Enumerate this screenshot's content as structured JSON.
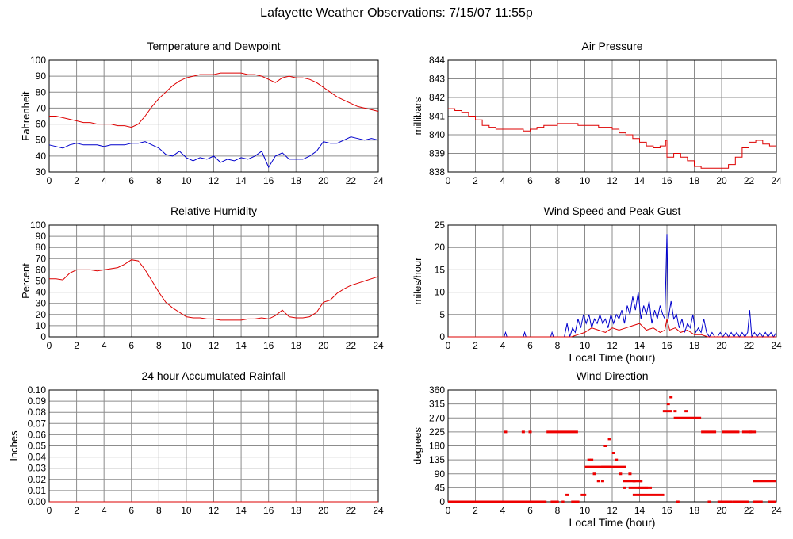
{
  "title": "Lafayette Weather Observations: 7/15/07 11:55p",
  "chart_data": [
    {
      "id": "temp",
      "type": "line",
      "title": "Temperature and Dewpoint",
      "xlabel": "",
      "ylabel": "Fahrenheit",
      "xlim": [
        0,
        24
      ],
      "ylim": [
        30,
        100
      ],
      "xticks": [
        0,
        2,
        4,
        6,
        8,
        10,
        12,
        14,
        16,
        18,
        20,
        22,
        24
      ],
      "yticks": [
        30,
        40,
        50,
        60,
        70,
        80,
        90,
        100
      ],
      "grid": true,
      "series": [
        {
          "color": "#dd0000",
          "x": [
            0,
            0.5,
            1,
            1.5,
            2,
            2.5,
            3,
            3.5,
            4,
            4.5,
            5,
            5.5,
            6,
            6.5,
            7,
            7.5,
            8,
            8.5,
            9,
            9.5,
            10,
            10.5,
            11,
            11.5,
            12,
            12.5,
            13,
            13.5,
            14,
            14.5,
            15,
            15.5,
            16,
            16.5,
            17,
            17.5,
            18,
            18.5,
            19,
            19.5,
            20,
            20.5,
            21,
            21.5,
            22,
            22.5,
            23,
            23.5,
            24
          ],
          "y": [
            65,
            65,
            64,
            63,
            62,
            61,
            61,
            60,
            60,
            60,
            59,
            59,
            58,
            60,
            65,
            71,
            76,
            80,
            84,
            87,
            89,
            90,
            91,
            91,
            91,
            92,
            92,
            92,
            92,
            91,
            91,
            90,
            88,
            86,
            89,
            90,
            89,
            89,
            88,
            86,
            83,
            80,
            77,
            75,
            73,
            71,
            70,
            69,
            68
          ]
        },
        {
          "color": "#0000cc",
          "x": [
            0,
            0.5,
            1,
            1.5,
            2,
            2.5,
            3,
            3.5,
            4,
            4.5,
            5,
            5.5,
            6,
            6.5,
            7,
            7.5,
            8,
            8.5,
            9,
            9.5,
            10,
            10.5,
            11,
            11.5,
            12,
            12.5,
            13,
            13.5,
            14,
            14.5,
            15,
            15.5,
            16,
            16.5,
            17,
            17.5,
            18,
            18.5,
            19,
            19.5,
            20,
            20.5,
            21,
            21.5,
            22,
            22.5,
            23,
            23.5,
            24
          ],
          "y": [
            47,
            46,
            45,
            47,
            48,
            47,
            47,
            47,
            46,
            47,
            47,
            47,
            48,
            48,
            49,
            47,
            45,
            41,
            40,
            43,
            39,
            37,
            39,
            38,
            40,
            36,
            38,
            37,
            39,
            38,
            40,
            43,
            33,
            40,
            42,
            38,
            38,
            38,
            40,
            43,
            49,
            48,
            48,
            50,
            52,
            51,
            50,
            51,
            50
          ]
        }
      ]
    },
    {
      "id": "pressure",
      "type": "line",
      "title": "Air Pressure",
      "xlabel": "",
      "ylabel": "millibars",
      "xlim": [
        0,
        24
      ],
      "ylim": [
        838,
        844
      ],
      "xticks": [
        0,
        2,
        4,
        6,
        8,
        10,
        12,
        14,
        16,
        18,
        20,
        22,
        24
      ],
      "yticks": [
        838,
        839,
        840,
        841,
        842,
        843,
        844
      ],
      "grid": true,
      "series": [
        {
          "color": "#dd0000",
          "x": [
            0,
            0.5,
            1,
            1.5,
            2,
            2.5,
            3,
            3.5,
            4,
            4.5,
            5,
            5.5,
            6,
            6.5,
            7,
            7.5,
            8,
            8.5,
            9,
            9.5,
            10,
            10.5,
            11,
            11.5,
            12,
            12.5,
            13,
            13.5,
            14,
            14.5,
            15,
            15.5,
            15.9,
            16,
            16.5,
            17,
            17.5,
            18,
            18.5,
            19,
            19.5,
            20,
            20.5,
            21,
            21.5,
            22,
            22.5,
            23,
            23.5,
            24
          ],
          "y": [
            841.4,
            841.3,
            841.2,
            841.0,
            840.8,
            840.5,
            840.4,
            840.3,
            840.3,
            840.3,
            840.3,
            840.2,
            840.3,
            840.4,
            840.5,
            840.5,
            840.6,
            840.6,
            840.6,
            840.5,
            840.5,
            840.5,
            840.4,
            840.4,
            840.3,
            840.1,
            840.0,
            839.8,
            839.6,
            839.4,
            839.3,
            839.4,
            839.7,
            838.8,
            839.0,
            838.8,
            838.6,
            838.3,
            838.2,
            838.2,
            838.2,
            838.2,
            838.4,
            838.8,
            839.3,
            839.6,
            839.7,
            839.5,
            839.4,
            839.4
          ]
        }
      ]
    },
    {
      "id": "humidity",
      "type": "line",
      "title": "Relative Humidity",
      "xlabel": "",
      "ylabel": "Percent",
      "xlim": [
        0,
        24
      ],
      "ylim": [
        0,
        100
      ],
      "xticks": [
        0,
        2,
        4,
        6,
        8,
        10,
        12,
        14,
        16,
        18,
        20,
        22,
        24
      ],
      "yticks": [
        0,
        10,
        20,
        30,
        40,
        50,
        60,
        70,
        80,
        90,
        100
      ],
      "grid": true,
      "series": [
        {
          "color": "#dd0000",
          "x": [
            0,
            0.5,
            1,
            1.5,
            2,
            2.5,
            3,
            3.5,
            4,
            4.5,
            5,
            5.5,
            6,
            6.5,
            7,
            7.5,
            8,
            8.5,
            9,
            9.5,
            10,
            10.5,
            11,
            11.5,
            12,
            12.5,
            13,
            13.5,
            14,
            14.5,
            15,
            15.5,
            16,
            16.5,
            17,
            17.5,
            18,
            18.5,
            19,
            19.5,
            20,
            20.5,
            21,
            21.5,
            22,
            22.5,
            23,
            23.5,
            24
          ],
          "y": [
            52,
            52,
            51,
            57,
            60,
            60,
            60,
            59,
            60,
            61,
            62,
            65,
            69,
            68,
            60,
            50,
            40,
            31,
            26,
            22,
            18,
            17,
            17,
            16,
            16,
            15,
            15,
            15,
            15,
            16,
            16,
            17,
            16,
            19,
            24,
            18,
            17,
            17,
            18,
            22,
            31,
            33,
            39,
            43,
            46,
            48,
            50,
            52,
            54
          ]
        }
      ]
    },
    {
      "id": "wind",
      "type": "line",
      "title": "Wind Speed and Peak Gust",
      "xlabel": "Local Time (hour)",
      "ylabel": "miles/hour",
      "xlim": [
        0,
        24
      ],
      "ylim": [
        0,
        25
      ],
      "xticks": [
        0,
        2,
        4,
        6,
        8,
        10,
        12,
        14,
        16,
        18,
        20,
        22,
        24
      ],
      "yticks": [
        0,
        5,
        10,
        15,
        20,
        25
      ],
      "grid": true,
      "series": [
        {
          "color": "#0000cc",
          "x": [
            0,
            4.1,
            4.2,
            4.3,
            5.5,
            5.6,
            5.7,
            7.5,
            7.6,
            7.7,
            8.5,
            8.7,
            8.9,
            9.1,
            9.3,
            9.5,
            9.7,
            9.9,
            10.1,
            10.3,
            10.5,
            10.7,
            10.9,
            11.1,
            11.3,
            11.5,
            11.7,
            11.9,
            12.1,
            12.3,
            12.5,
            12.7,
            12.9,
            13.1,
            13.3,
            13.5,
            13.7,
            13.9,
            14.1,
            14.3,
            14.5,
            14.7,
            14.9,
            15.1,
            15.3,
            15.5,
            15.7,
            15.85,
            16.0,
            16.1,
            16.3,
            16.5,
            16.7,
            16.9,
            17.1,
            17.3,
            17.5,
            17.7,
            17.9,
            18.1,
            18.3,
            18.5,
            18.7,
            18.9,
            19.1,
            19.3,
            19.5,
            19.7,
            19.9,
            20.1,
            20.3,
            20.5,
            20.7,
            20.9,
            21.1,
            21.3,
            21.5,
            21.7,
            21.9,
            22.05,
            22.2,
            22.4,
            22.6,
            22.8,
            23.0,
            23.2,
            23.4,
            23.6,
            23.8,
            24.0
          ],
          "y": [
            0,
            0,
            1,
            0,
            0,
            1,
            0,
            0,
            1,
            0,
            0,
            3,
            0,
            2,
            1,
            4,
            2,
            5,
            3,
            5,
            2,
            4,
            3,
            5,
            3,
            4,
            2,
            5,
            3,
            5,
            4,
            6,
            3,
            7,
            5,
            9,
            6,
            10,
            4,
            7,
            5,
            8,
            3,
            6,
            4,
            7,
            5,
            4,
            23,
            4,
            8,
            4,
            5,
            2,
            4,
            1,
            3,
            2,
            5,
            1,
            2,
            1,
            4,
            1,
            0,
            1,
            0,
            0,
            1,
            0,
            1,
            0,
            1,
            0,
            1,
            0,
            1,
            0,
            1,
            6,
            0,
            1,
            0,
            1,
            0,
            1,
            0,
            1,
            0,
            1
          ]
        },
        {
          "color": "#dd0000",
          "x": [
            0,
            9.0,
            9.5,
            10.0,
            10.5,
            11.0,
            11.5,
            12.0,
            12.5,
            13.0,
            13.5,
            14.0,
            14.5,
            15.0,
            15.5,
            15.85,
            16.0,
            16.2,
            16.6,
            17.0,
            17.5,
            18.0,
            18.5,
            19.0,
            24.0
          ],
          "y": [
            0,
            0,
            0.5,
            1,
            2,
            1.5,
            1,
            2,
            1.5,
            2,
            2.5,
            3,
            1.5,
            2,
            1,
            1.5,
            4,
            1.5,
            2,
            1,
            1.5,
            0.5,
            0.5,
            0,
            0
          ]
        }
      ]
    },
    {
      "id": "rain",
      "type": "line",
      "title": "24 hour Accumulated Rainfall",
      "xlabel": "",
      "ylabel": "Inches",
      "xlim": [
        0,
        24
      ],
      "ylim": [
        0,
        0.1
      ],
      "xticks": [
        0,
        2,
        4,
        6,
        8,
        10,
        12,
        14,
        16,
        18,
        20,
        22,
        24
      ],
      "yticks": [
        "0.00",
        "0.01",
        "0.02",
        "0.03",
        "0.04",
        "0.05",
        "0.06",
        "0.07",
        "0.08",
        "0.09",
        "0.10"
      ],
      "grid": true,
      "series": [
        {
          "color": "#dd0000",
          "x": [
            0,
            24
          ],
          "y": [
            0,
            0
          ]
        }
      ]
    },
    {
      "id": "direction",
      "type": "scatter",
      "title": "Wind Direction",
      "xlabel": "Local Time (hour)",
      "ylabel": "degrees",
      "xlim": [
        0,
        24
      ],
      "ylim": [
        0,
        360
      ],
      "xticks": [
        0,
        2,
        4,
        6,
        8,
        10,
        12,
        14,
        16,
        18,
        20,
        22,
        24
      ],
      "yticks": [
        0,
        45,
        90,
        135,
        180,
        225,
        270,
        315,
        360
      ],
      "grid": true,
      "segments": [
        {
          "x0": 0.0,
          "x1": 7.2,
          "y": 0
        },
        {
          "x0": 7.5,
          "x1": 8.1,
          "y": 0
        },
        {
          "x0": 8.3,
          "x1": 8.5,
          "y": 0
        },
        {
          "x0": 9.0,
          "x1": 9.6,
          "y": 0
        },
        {
          "x0": 9.7,
          "x1": 10.1,
          "y": 22
        },
        {
          "x0": 10.0,
          "x1": 11.9,
          "y": 112
        },
        {
          "x0": 11.2,
          "x1": 13.0,
          "y": 112
        },
        {
          "x0": 12.8,
          "x1": 14.2,
          "y": 67
        },
        {
          "x0": 13.9,
          "x1": 14.9,
          "y": 45
        },
        {
          "x0": 13.5,
          "x1": 15.8,
          "y": 22
        },
        {
          "x0": 15.7,
          "x1": 16.4,
          "y": 292
        },
        {
          "x0": 16.5,
          "x1": 18.5,
          "y": 270
        },
        {
          "x0": 18.5,
          "x1": 19.6,
          "y": 225
        },
        {
          "x0": 19.7,
          "x1": 20.8,
          "y": 0
        },
        {
          "x0": 20.0,
          "x1": 21.3,
          "y": 225
        },
        {
          "x0": 21.5,
          "x1": 22.5,
          "y": 225
        },
        {
          "x0": 20.8,
          "x1": 22.0,
          "y": 0
        },
        {
          "x0": 22.3,
          "x1": 23.0,
          "y": 0
        },
        {
          "x0": 23.4,
          "x1": 24.0,
          "y": 0
        },
        {
          "x0": 22.3,
          "x1": 24.0,
          "y": 67
        },
        {
          "x0": 7.2,
          "x1": 9.5,
          "y": 225
        },
        {
          "x0": 13.2,
          "x1": 14.4,
          "y": 45
        }
      ],
      "points": [
        [
          4.2,
          225
        ],
        [
          5.5,
          225
        ],
        [
          6.0,
          225
        ],
        [
          8.7,
          22
        ],
        [
          10.3,
          135
        ],
        [
          10.5,
          135
        ],
        [
          10.7,
          90
        ],
        [
          11.0,
          67
        ],
        [
          11.3,
          67
        ],
        [
          11.5,
          180
        ],
        [
          11.8,
          202
        ],
        [
          12.1,
          157
        ],
        [
          12.3,
          135
        ],
        [
          12.6,
          90
        ],
        [
          12.9,
          45
        ],
        [
          13.3,
          90
        ],
        [
          13.6,
          67
        ],
        [
          14.1,
          67
        ],
        [
          14.5,
          45
        ],
        [
          16.1,
          315
        ],
        [
          16.3,
          337
        ],
        [
          16.6,
          292
        ],
        [
          17.4,
          292
        ],
        [
          16.8,
          0
        ],
        [
          20.0,
          0
        ],
        [
          22.1,
          225
        ],
        [
          19.1,
          0
        ]
      ]
    }
  ]
}
